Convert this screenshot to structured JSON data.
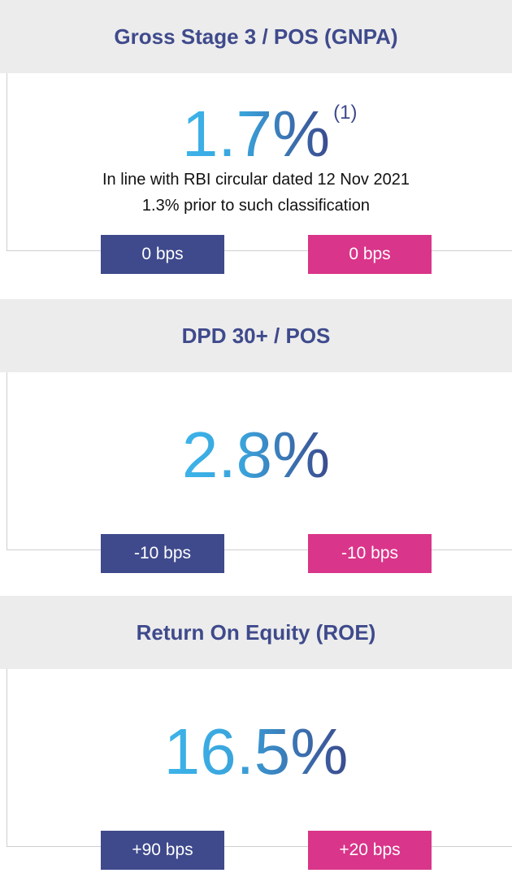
{
  "cards": [
    {
      "title": "Gross Stage 3 / POS (GNPA)",
      "value": "1.7%",
      "footnote": "(1)",
      "notes": [
        "In line with RBI circular dated 12 Nov 2021",
        "1.3% prior to such classification"
      ],
      "badges": [
        "0 bps",
        "0 bps"
      ]
    },
    {
      "title": "DPD 30+ / POS",
      "value": "2.8%",
      "badges": [
        "-10 bps",
        "-10 bps"
      ]
    },
    {
      "title": "Return On Equity (ROE)",
      "value": "16.5%",
      "badges": [
        "+90 bps",
        "+20 bps"
      ]
    }
  ]
}
